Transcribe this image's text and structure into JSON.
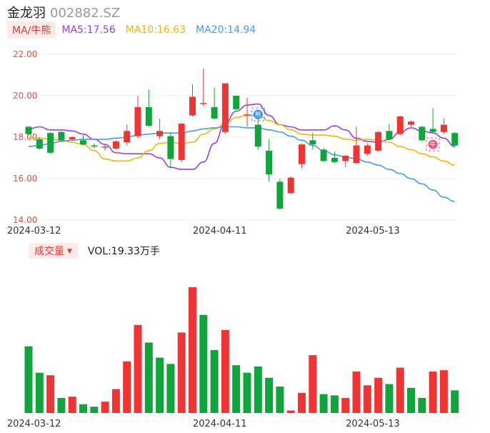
{
  "header": {
    "name": "金龙羽",
    "code": "002882.SZ"
  },
  "ma_legend": {
    "toggle_label": "MA/牛熊",
    "ma5": "MA5:17.56",
    "ma10": "MA10:16.63",
    "ma20": "MA20:14.94"
  },
  "volume_legend": {
    "toggle_label": "成交量",
    "vol_text": "VOL:19.33万手"
  },
  "markers": {
    "sell": "熊",
    "buy": "牛"
  },
  "colors": {
    "up": "#f03434",
    "down": "#10a53a",
    "ma5": "#9b3fe6",
    "ma10": "#f2b705",
    "ma20": "#4a9be8"
  },
  "chart_data": [
    {
      "type": "candlestick",
      "title": "",
      "y_ticks": [
        "22.00",
        "20.00",
        "18.00",
        "16.00",
        "14.00"
      ],
      "ylim": [
        14,
        22
      ],
      "x_labels": [
        {
          "label": "2024-03-12",
          "index": 0.5
        },
        {
          "label": "2024-04-11",
          "index": 17.5
        },
        {
          "label": "2024-05-13",
          "index": 31.5
        }
      ],
      "candles": [
        {
          "o": 18.5,
          "c": 18.15,
          "h": 18.55,
          "l": 18.1
        },
        {
          "o": 17.9,
          "c": 17.45,
          "h": 18.0,
          "l": 17.4
        },
        {
          "o": 18.2,
          "c": 17.25,
          "h": 18.25,
          "l": 17.2
        },
        {
          "o": 18.25,
          "c": 17.85,
          "h": 18.3,
          "l": 17.8
        },
        {
          "o": 17.9,
          "c": 18.0,
          "h": 18.05,
          "l": 17.85
        },
        {
          "o": 17.85,
          "c": 17.65,
          "h": 18.1,
          "l": 17.6
        },
        {
          "o": 17.6,
          "c": 17.55,
          "h": 17.7,
          "l": 17.45
        },
        {
          "o": 17.5,
          "c": 17.55,
          "h": 17.65,
          "l": 17.35
        },
        {
          "o": 17.45,
          "c": 17.8,
          "h": 17.85,
          "l": 17.4
        },
        {
          "o": 17.75,
          "c": 18.3,
          "h": 18.6,
          "l": 17.6
        },
        {
          "o": 18.05,
          "c": 19.45,
          "h": 20.0,
          "l": 17.95
        },
        {
          "o": 19.45,
          "c": 18.55,
          "h": 20.3,
          "l": 18.5
        },
        {
          "o": 18.05,
          "c": 18.3,
          "h": 18.9,
          "l": 17.9
        },
        {
          "o": 18.05,
          "c": 16.95,
          "h": 18.2,
          "l": 16.5
        },
        {
          "o": 16.9,
          "c": 18.65,
          "h": 18.7,
          "l": 16.8
        },
        {
          "o": 19.05,
          "c": 19.95,
          "h": 20.55,
          "l": 19.0
        },
        {
          "o": 19.6,
          "c": 19.65,
          "h": 21.3,
          "l": 19.5
        },
        {
          "o": 19.45,
          "c": 18.9,
          "h": 20.4,
          "l": 18.85
        },
        {
          "o": 18.25,
          "c": 20.6,
          "h": 20.6,
          "l": 18.15
        },
        {
          "o": 20.0,
          "c": 19.35,
          "h": 20.0,
          "l": 19.3
        },
        {
          "o": 19.05,
          "c": 19.1,
          "h": 19.9,
          "l": 18.5
        },
        {
          "o": 18.6,
          "c": 17.55,
          "h": 19.0,
          "l": 17.4
        },
        {
          "o": 17.35,
          "c": 16.2,
          "h": 17.9,
          "l": 15.85
        },
        {
          "o": 15.85,
          "c": 14.55,
          "h": 16.0,
          "l": 14.5
        },
        {
          "o": 15.3,
          "c": 16.05,
          "h": 16.1,
          "l": 15.25
        },
        {
          "o": 16.7,
          "c": 17.65,
          "h": 17.7,
          "l": 16.5
        },
        {
          "o": 17.85,
          "c": 17.65,
          "h": 18.2,
          "l": 17.4
        },
        {
          "o": 17.4,
          "c": 16.85,
          "h": 17.5,
          "l": 16.8
        },
        {
          "o": 17.0,
          "c": 16.8,
          "h": 17.3,
          "l": 16.75
        },
        {
          "o": 16.85,
          "c": 17.1,
          "h": 17.15,
          "l": 16.55
        },
        {
          "o": 16.75,
          "c": 17.6,
          "h": 18.5,
          "l": 16.7
        },
        {
          "o": 17.2,
          "c": 17.6,
          "h": 17.7,
          "l": 17.1
        },
        {
          "o": 17.35,
          "c": 18.25,
          "h": 18.3,
          "l": 17.3
        },
        {
          "o": 18.3,
          "c": 17.9,
          "h": 18.65,
          "l": 17.85
        },
        {
          "o": 18.15,
          "c": 19.0,
          "h": 19.05,
          "l": 18.1
        },
        {
          "o": 18.6,
          "c": 18.75,
          "h": 18.8,
          "l": 18.5
        },
        {
          "o": 18.5,
          "c": 17.85,
          "h": 18.55,
          "l": 17.8
        },
        {
          "o": 18.4,
          "c": 18.25,
          "h": 19.4,
          "l": 18.2
        },
        {
          "o": 18.25,
          "c": 18.6,
          "h": 18.9,
          "l": 18.15
        },
        {
          "o": 18.2,
          "c": 17.6,
          "h": 18.25,
          "l": 17.5
        }
      ],
      "series": [
        {
          "name": "MA5",
          "values": [
            18.4,
            18.5,
            18.35,
            18.35,
            18.3,
            18.15,
            17.9,
            17.65,
            17.25,
            17.2,
            17.2,
            17.2,
            17.0,
            16.55,
            16.45,
            16.45,
            16.8,
            17.7,
            18.7,
            19.25,
            19.55,
            19.6,
            19.05,
            18.6,
            18.5,
            18.35,
            18.35,
            18.35,
            18.55,
            18.35,
            17.95,
            17.8,
            17.75,
            17.9,
            18.25,
            18.45,
            18.3,
            18.2,
            17.95,
            17.55
          ]
        },
        {
          "name": "MA10",
          "values": [
            18.0,
            17.95,
            17.9,
            17.85,
            17.75,
            17.65,
            17.35,
            16.95,
            16.85,
            16.85,
            17.0,
            17.35,
            17.7,
            17.75,
            17.7,
            17.75,
            18.15,
            18.4,
            18.65,
            18.95,
            19.05,
            19.05,
            18.8,
            18.6,
            18.35,
            18.15,
            18.1,
            18.1,
            18.05,
            17.9,
            17.85,
            17.9,
            17.85,
            17.75,
            17.55,
            17.4,
            17.2,
            17.05,
            16.85,
            16.65
          ]
        },
        {
          "name": "MA20",
          "values": [
            17.55,
            17.6,
            17.7,
            17.8,
            17.85,
            17.9,
            17.9,
            17.9,
            17.95,
            18.0,
            18.1,
            18.15,
            18.2,
            18.2,
            18.2,
            18.3,
            18.4,
            18.45,
            18.5,
            18.5,
            18.45,
            18.45,
            18.35,
            18.25,
            18.05,
            17.85,
            17.6,
            17.35,
            17.15,
            17.05,
            16.95,
            16.8,
            16.65,
            16.45,
            16.25,
            16.0,
            15.75,
            15.45,
            15.1,
            14.9
          ]
        }
      ],
      "signals": [
        {
          "index": 21,
          "value": 19.1,
          "label": "熊"
        },
        {
          "index": 37,
          "value": 17.65,
          "label": "牛"
        }
      ]
    },
    {
      "type": "bar",
      "title": "",
      "ylabel": "",
      "x_labels": [
        {
          "label": "2024-03-12",
          "index": 0.5
        },
        {
          "label": "2024-04-11",
          "index": 17.5
        },
        {
          "label": "2024-05-13",
          "index": 31.5
        }
      ],
      "values": [
        0.53,
        0.32,
        0.3,
        0.12,
        0.13,
        0.07,
        0.05,
        0.09,
        0.19,
        0.41,
        0.7,
        0.56,
        0.44,
        0.39,
        0.64,
        1.0,
        0.78,
        0.5,
        0.66,
        0.38,
        0.32,
        0.37,
        0.28,
        0.21,
        0.02,
        0.16,
        0.46,
        0.15,
        0.14,
        0.12,
        0.33,
        0.22,
        0.28,
        0.23,
        0.36,
        0.2,
        0.12,
        0.33,
        0.34,
        0.18
      ],
      "directions": [
        "down",
        "down",
        "up",
        "down",
        "up",
        "down",
        "down",
        "up",
        "up",
        "up",
        "up",
        "down",
        "down",
        "down",
        "up",
        "up",
        "down",
        "down",
        "up",
        "down",
        "down",
        "down",
        "down",
        "down",
        "up",
        "up",
        "up",
        "down",
        "down",
        "up",
        "up",
        "up",
        "up",
        "down",
        "up",
        "down",
        "down",
        "up",
        "up",
        "down"
      ]
    }
  ]
}
